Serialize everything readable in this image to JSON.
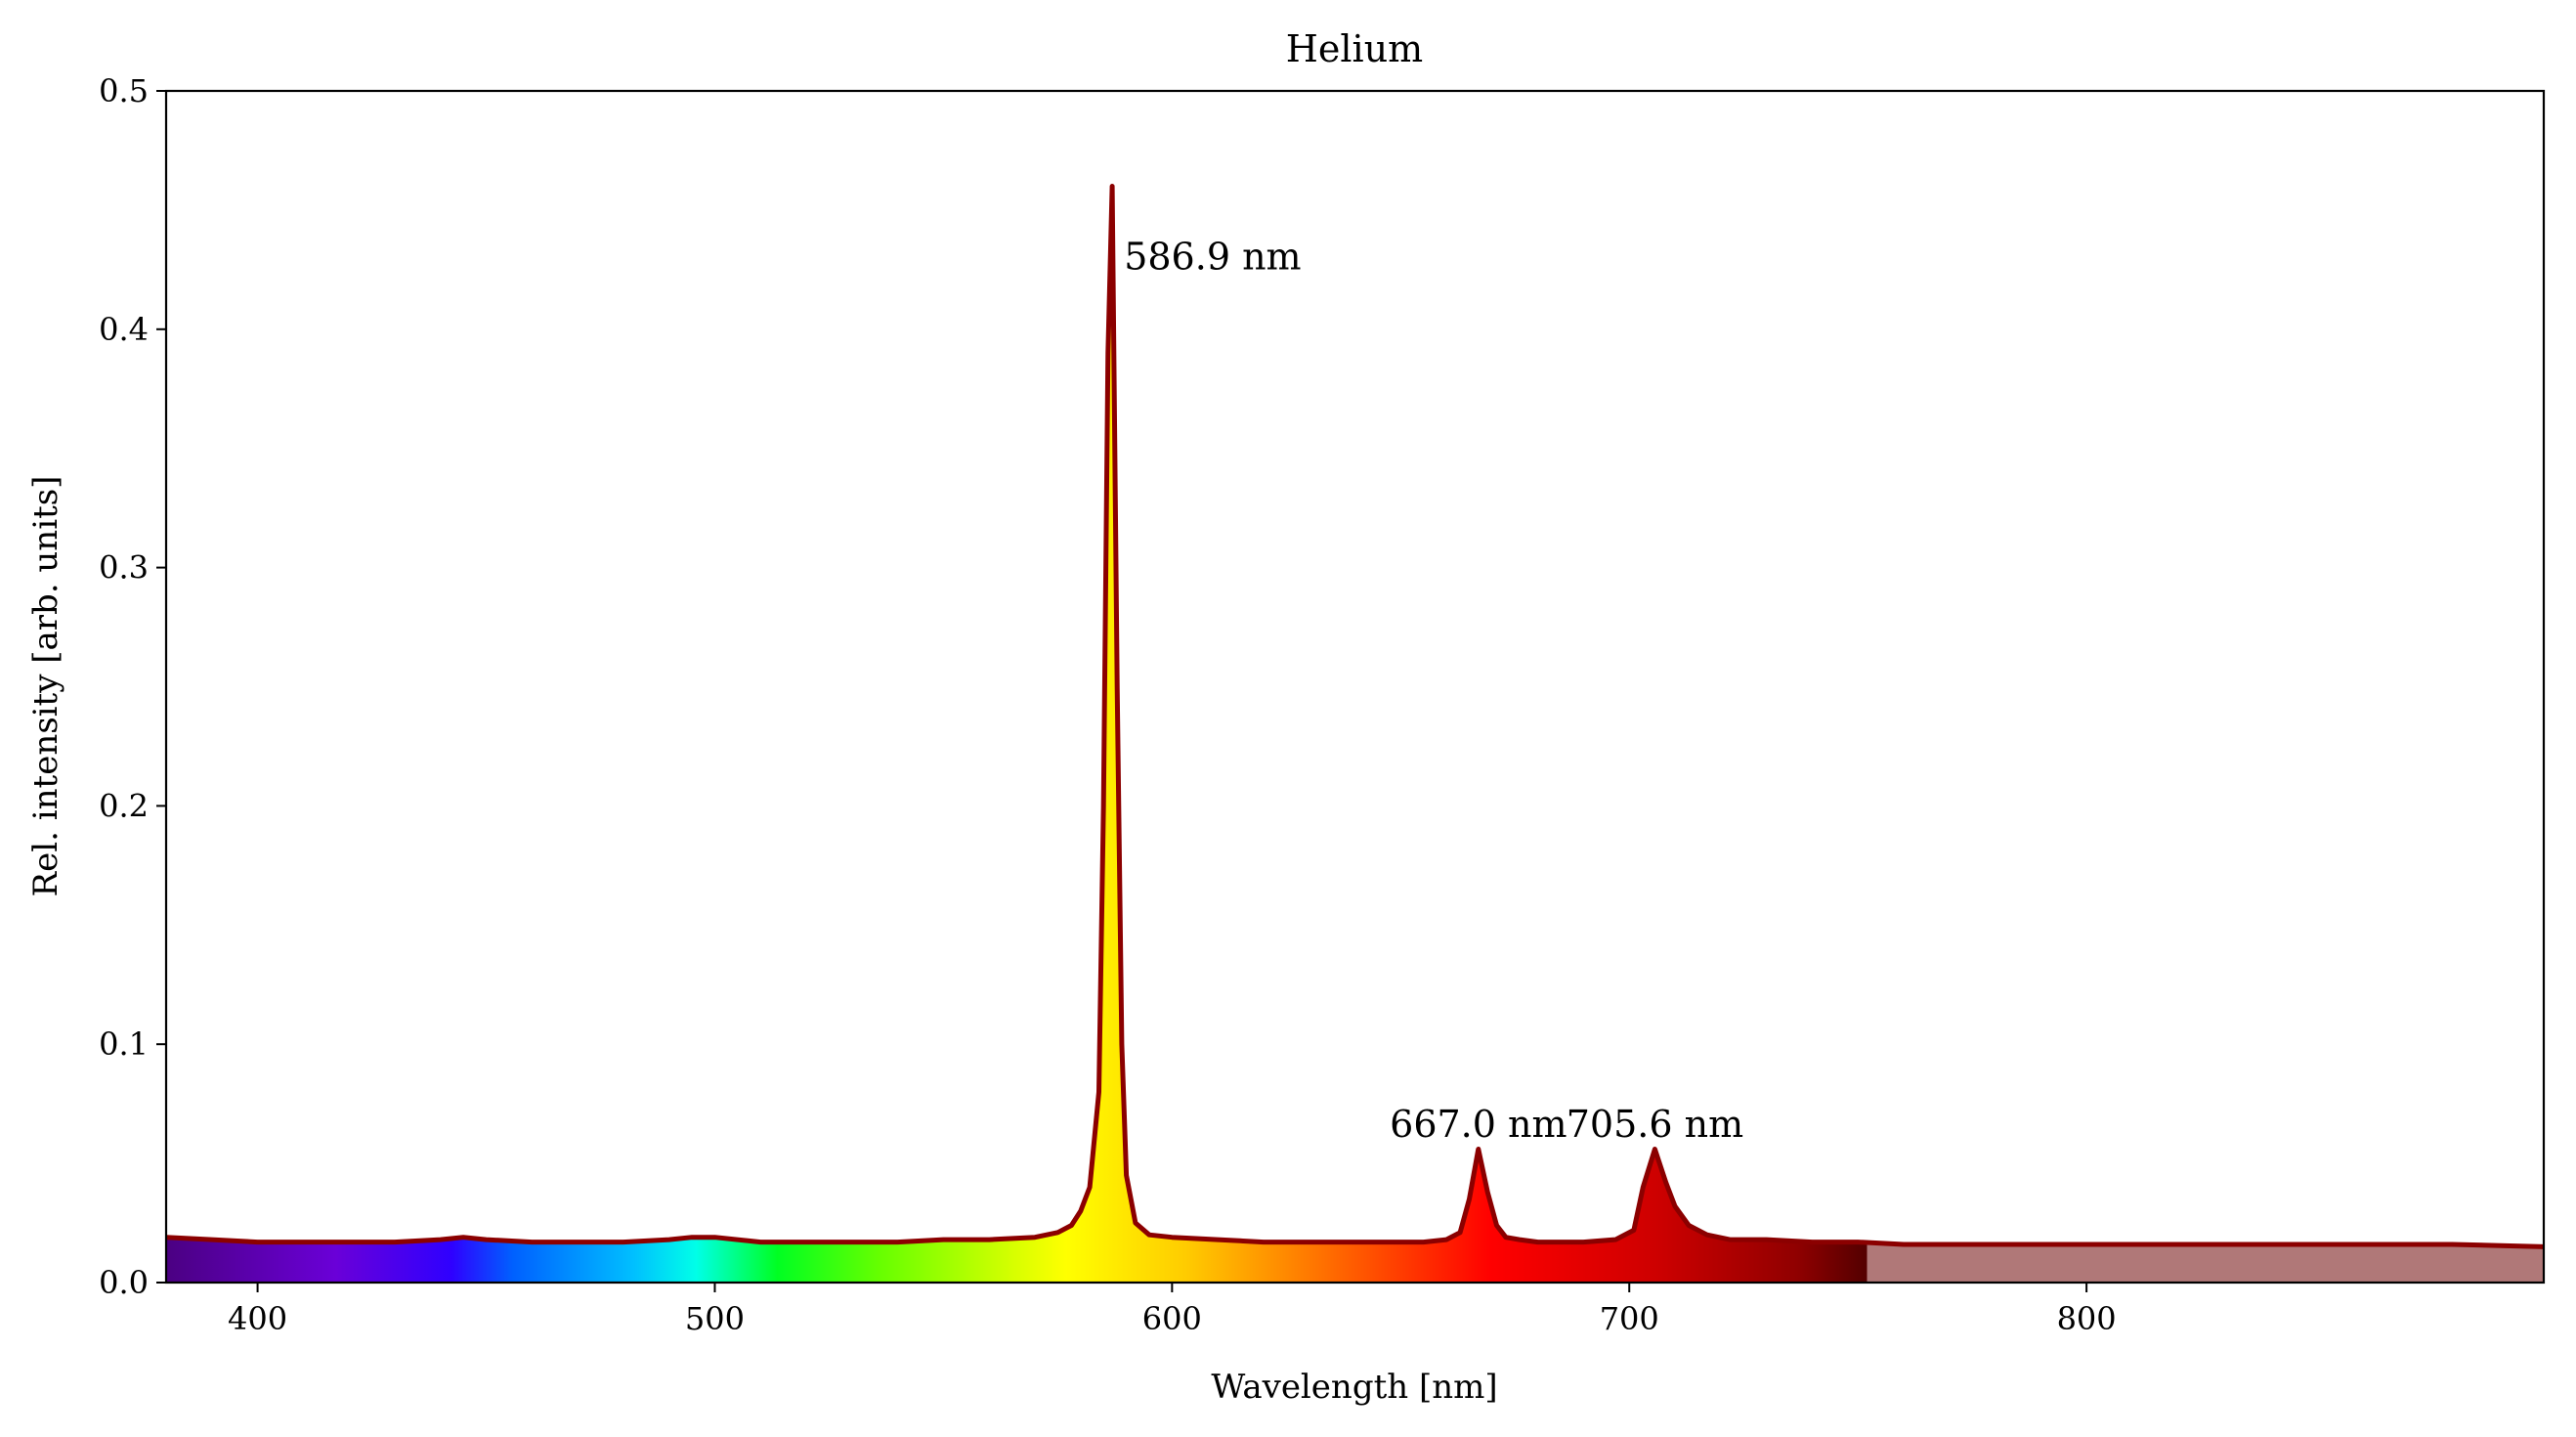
{
  "chart_data": {
    "type": "line",
    "title": "Helium",
    "xlabel": "Wavelength [nm]",
    "ylabel": "Rel. intensity [arb. units]",
    "xlim": [
      380,
      900
    ],
    "ylim": [
      0,
      0.5
    ],
    "x_ticks": [
      "400",
      "500",
      "600",
      "700",
      "800"
    ],
    "y_ticks": [
      "0.0",
      "0.1",
      "0.2",
      "0.3",
      "0.4",
      "0.5"
    ],
    "grid": false,
    "legend": "none",
    "line_color": "#8b0000",
    "invisible_region_color": "#b07878",
    "visible_range_nm": [
      380,
      752
    ],
    "series": [
      {
        "x": [
          380,
          390,
          400,
          410,
          420,
          430,
          440,
          445,
          450,
          460,
          470,
          480,
          490,
          495,
          500,
          510,
          520,
          530,
          540,
          550,
          560,
          570,
          575,
          578,
          580,
          582,
          584,
          585,
          586,
          586.9,
          588,
          589,
          590,
          592,
          595,
          600,
          610,
          620,
          630,
          640,
          650,
          655,
          660,
          663,
          665,
          667,
          669,
          671,
          673,
          676,
          680,
          690,
          697,
          701,
          703,
          705.6,
          708,
          710,
          713,
          717,
          722,
          730,
          740,
          750,
          760,
          780,
          800,
          820,
          840,
          860,
          880,
          900
        ],
        "y": [
          0.019,
          0.018,
          0.017,
          0.017,
          0.017,
          0.017,
          0.018,
          0.019,
          0.018,
          0.017,
          0.017,
          0.017,
          0.018,
          0.019,
          0.019,
          0.017,
          0.017,
          0.017,
          0.017,
          0.018,
          0.018,
          0.019,
          0.021,
          0.024,
          0.03,
          0.04,
          0.08,
          0.2,
          0.39,
          0.46,
          0.25,
          0.1,
          0.045,
          0.025,
          0.02,
          0.019,
          0.018,
          0.017,
          0.017,
          0.017,
          0.017,
          0.017,
          0.018,
          0.021,
          0.035,
          0.056,
          0.038,
          0.024,
          0.019,
          0.018,
          0.017,
          0.017,
          0.018,
          0.022,
          0.04,
          0.056,
          0.042,
          0.032,
          0.024,
          0.02,
          0.018,
          0.018,
          0.017,
          0.017,
          0.016,
          0.016,
          0.016,
          0.016,
          0.016,
          0.016,
          0.016,
          0.015
        ]
      }
    ],
    "annotations": [
      {
        "text": "586.9 nm",
        "x": 589.5,
        "y": 0.43
      },
      {
        "text": "667.0 nm",
        "x": 667,
        "y": 0.066
      },
      {
        "text": "705.6 nm",
        "x": 705.6,
        "y": 0.066
      }
    ]
  }
}
